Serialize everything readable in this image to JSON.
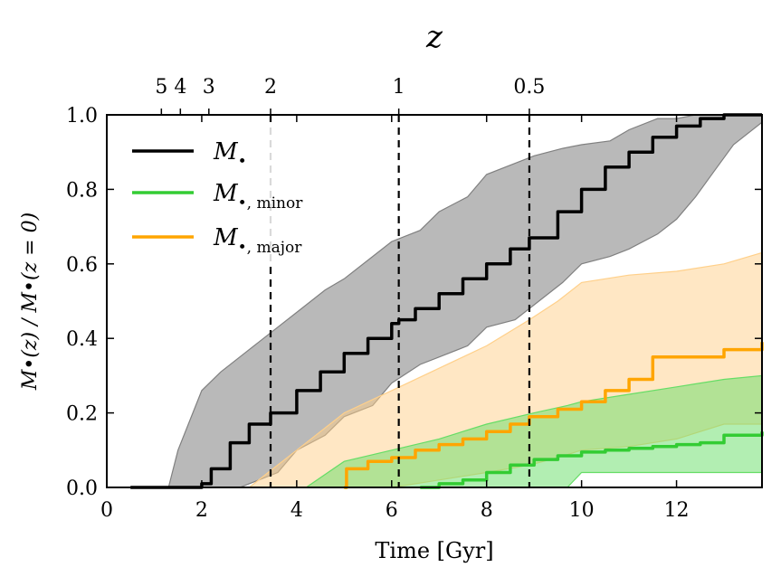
{
  "chart_data": {
    "type": "line",
    "xlabel": "Time [Gyr]",
    "ylabel": "M•(z) / M•(z = 0)",
    "top_axis_label": "z",
    "xlim": [
      0,
      13.8
    ],
    "ylim": [
      0,
      1.0
    ],
    "x_ticks": [
      0,
      2,
      4,
      6,
      8,
      10,
      12
    ],
    "y_ticks": [
      "0.0",
      "0.2",
      "0.4",
      "0.6",
      "0.8",
      "1.0"
    ],
    "top_ticks": [
      {
        "label": "5",
        "t": 1.15
      },
      {
        "label": "4",
        "t": 1.55
      },
      {
        "label": "3",
        "t": 2.15
      },
      {
        "label": "2",
        "t": 3.45
      },
      {
        "label": "1",
        "t": 6.15
      },
      {
        "label": "0.5",
        "t": 8.9
      }
    ],
    "vlines": [
      3.45,
      6.15,
      8.9
    ],
    "series": [
      {
        "name": "M•",
        "legend_main": "M",
        "legend_sub": "",
        "color": "#000000",
        "band_color": "#808080",
        "x": [
          0.5,
          1.9,
          2.0,
          2.2,
          2.6,
          3.0,
          3.45,
          4.0,
          4.5,
          5.0,
          5.5,
          6.0,
          6.15,
          6.5,
          7.0,
          7.5,
          8.0,
          8.5,
          8.9,
          9.5,
          10.0,
          10.5,
          11.0,
          11.5,
          12.0,
          12.5,
          13.0,
          13.8
        ],
        "values": [
          0.0,
          0.0,
          0.01,
          0.05,
          0.12,
          0.17,
          0.2,
          0.26,
          0.31,
          0.36,
          0.4,
          0.44,
          0.45,
          0.48,
          0.52,
          0.56,
          0.6,
          0.64,
          0.67,
          0.74,
          0.8,
          0.86,
          0.9,
          0.94,
          0.97,
          0.99,
          1.0,
          1.0
        ],
        "band_x": [
          1.3,
          1.5,
          2.0,
          2.4,
          2.8,
          3.2,
          3.6,
          4.0,
          4.6,
          5.0,
          5.6,
          6.0,
          6.6,
          7.0,
          7.6,
          8.0,
          8.6,
          9.0,
          9.6,
          10.0,
          10.6,
          11.0,
          11.6,
          12.0,
          12.4,
          12.8,
          13.2,
          13.8
        ],
        "band_low": [
          0.0,
          0.0,
          0.0,
          0.0,
          0.0,
          0.02,
          0.04,
          0.1,
          0.14,
          0.19,
          0.22,
          0.28,
          0.33,
          0.35,
          0.38,
          0.43,
          0.45,
          0.49,
          0.55,
          0.6,
          0.62,
          0.64,
          0.68,
          0.72,
          0.78,
          0.85,
          0.92,
          0.98
        ],
        "band_high": [
          0.0,
          0.1,
          0.26,
          0.31,
          0.35,
          0.39,
          0.43,
          0.47,
          0.53,
          0.56,
          0.62,
          0.66,
          0.69,
          0.74,
          0.78,
          0.84,
          0.87,
          0.89,
          0.91,
          0.92,
          0.93,
          0.96,
          0.99,
          0.99,
          1.0,
          1.0,
          1.0,
          1.0
        ]
      },
      {
        "name": "M•, minor",
        "legend_main": "M",
        "legend_sub": ", minor",
        "color": "#33cc33",
        "band_color": "#66dd66",
        "x": [
          6.6,
          7.0,
          7.5,
          8.0,
          8.5,
          9.0,
          9.5,
          10.0,
          10.5,
          11.0,
          11.5,
          12.0,
          12.5,
          13.0,
          13.8
        ],
        "values": [
          0.0,
          0.01,
          0.02,
          0.04,
          0.06,
          0.075,
          0.085,
          0.095,
          0.1,
          0.105,
          0.11,
          0.115,
          0.12,
          0.14,
          0.15
        ],
        "band_x": [
          4.2,
          5.0,
          6.0,
          7.0,
          8.0,
          9.0,
          9.7,
          10.0,
          11.0,
          12.0,
          13.0,
          13.8
        ],
        "band_low": [
          0.0,
          0.0,
          0.0,
          0.0,
          0.0,
          0.0,
          0.0,
          0.04,
          0.04,
          0.04,
          0.04,
          0.04
        ],
        "band_high": [
          0.0,
          0.07,
          0.1,
          0.13,
          0.17,
          0.2,
          0.22,
          0.23,
          0.25,
          0.27,
          0.29,
          0.3
        ]
      },
      {
        "name": "M•, major",
        "legend_main": "M",
        "legend_sub": ", major",
        "color": "#ffa500",
        "band_color": "#ffd08a",
        "x": [
          5.0,
          5.05,
          5.5,
          6.0,
          6.5,
          7.0,
          7.5,
          8.0,
          8.5,
          8.9,
          9.5,
          10.0,
          10.5,
          11.0,
          11.5,
          12.0,
          12.5,
          13.0,
          13.8
        ],
        "values": [
          0.0,
          0.05,
          0.07,
          0.08,
          0.1,
          0.115,
          0.13,
          0.15,
          0.17,
          0.19,
          0.21,
          0.23,
          0.26,
          0.29,
          0.35,
          0.35,
          0.35,
          0.37,
          0.39
        ],
        "band_x": [
          3.0,
          3.5,
          4.0,
          5.0,
          6.0,
          7.0,
          8.0,
          8.9,
          9.5,
          10.0,
          11.0,
          12.0,
          13.0,
          13.8
        ],
        "band_low": [
          0.0,
          0.0,
          0.0,
          0.0,
          0.0,
          0.02,
          0.04,
          0.06,
          0.08,
          0.1,
          0.11,
          0.13,
          0.17,
          0.17
        ],
        "band_high": [
          0.0,
          0.05,
          0.1,
          0.2,
          0.26,
          0.32,
          0.38,
          0.45,
          0.5,
          0.55,
          0.57,
          0.58,
          0.6,
          0.63
        ]
      }
    ]
  }
}
